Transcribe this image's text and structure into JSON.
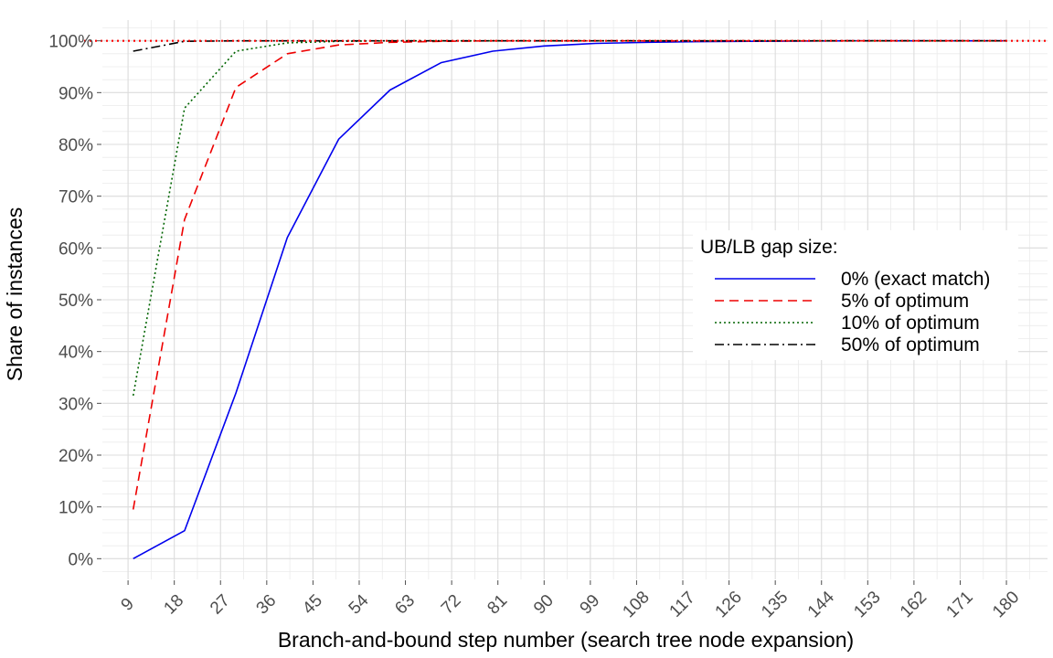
{
  "chart_data": {
    "type": "line",
    "xlabel": "Branch-and-bound step number (search tree node expansion)",
    "ylabel": "Share of instances",
    "x_ticks": [
      9,
      18,
      27,
      36,
      45,
      54,
      63,
      72,
      81,
      90,
      99,
      108,
      117,
      126,
      135,
      144,
      153,
      162,
      171,
      180
    ],
    "y_ticks": [
      0,
      10,
      20,
      30,
      40,
      50,
      60,
      70,
      80,
      90,
      100
    ],
    "y_tick_labels": [
      "0%",
      "10%",
      "20%",
      "30%",
      "40%",
      "50%",
      "60%",
      "70%",
      "80%",
      "90%",
      "100%"
    ],
    "xlim": [
      4,
      188
    ],
    "ylim": [
      -4,
      104
    ],
    "grid": true,
    "reference_line": {
      "y": 100,
      "color": "#ff0000",
      "style": "dotted"
    },
    "legend": {
      "title": "UB/LB gap size:",
      "position": "right"
    },
    "series": [
      {
        "name": "0% (exact match)",
        "color": "#0000ee",
        "dash": "solid",
        "x": [
          10,
          20,
          30,
          40,
          50,
          60,
          70,
          80,
          90,
          100,
          110,
          120,
          130,
          140,
          150,
          160,
          170,
          180
        ],
        "y": [
          0,
          5.4,
          32,
          62,
          81,
          90.5,
          95.8,
          98,
          99,
          99.5,
          99.7,
          99.85,
          99.9,
          99.95,
          100,
          100,
          100,
          100
        ]
      },
      {
        "name": "5% of optimum",
        "color": "#ee0000",
        "dash": "dashed",
        "x": [
          10,
          20,
          30,
          40,
          50,
          60,
          70,
          80,
          90,
          100,
          110,
          120,
          130,
          140,
          150,
          160,
          170,
          180
        ],
        "y": [
          9.5,
          65.5,
          91,
          97.5,
          99.2,
          99.7,
          99.9,
          100,
          100,
          100,
          100,
          100,
          100,
          100,
          100,
          100,
          100,
          100
        ]
      },
      {
        "name": "10% of optimum",
        "color": "#006400",
        "dash": "dotted",
        "x": [
          10,
          20,
          30,
          40,
          50,
          60,
          70,
          80,
          90,
          100,
          110,
          120,
          130,
          140,
          150,
          160,
          170,
          180
        ],
        "y": [
          31.5,
          87,
          98,
          99.6,
          99.9,
          100,
          100,
          100,
          100,
          100,
          100,
          100,
          100,
          100,
          100,
          100,
          100,
          100
        ]
      },
      {
        "name": "50% of optimum",
        "color": "#000000",
        "dash": "dashdot",
        "x": [
          10,
          20,
          30,
          40,
          50,
          60,
          70,
          80,
          90,
          100,
          110,
          120,
          130,
          140,
          150,
          160,
          170,
          180
        ],
        "y": [
          98,
          99.9,
          100,
          100,
          100,
          100,
          100,
          100,
          100,
          100,
          100,
          100,
          100,
          100,
          100,
          100,
          100,
          100
        ]
      }
    ]
  }
}
